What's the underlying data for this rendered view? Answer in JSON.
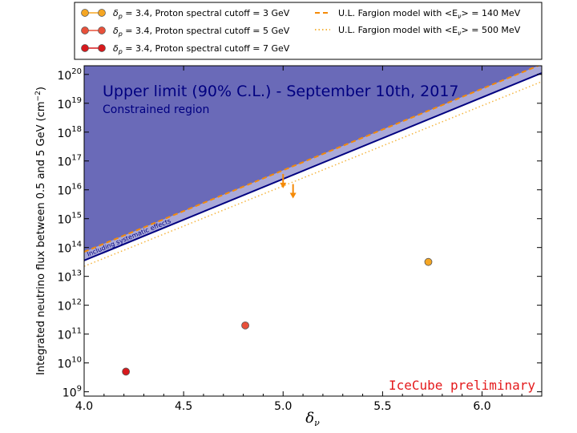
{
  "chart_data": {
    "type": "scatter",
    "xlabel": "δ_ν",
    "ylabel": "Integrated neutrino flux between 0.5 and 5 GeV (cm^-2)",
    "xlim": [
      4.0,
      6.3
    ],
    "ylim_log10": [
      8.85,
      20.3
    ],
    "y_scale": "log",
    "grid": false,
    "legend_position": "top, above plot",
    "x_ticks": [
      {
        "value": 4.0,
        "label": "4.0"
      },
      {
        "value": 4.5,
        "label": "4.5"
      },
      {
        "value": 5.0,
        "label": "5.0"
      },
      {
        "value": 5.5,
        "label": "5.5"
      },
      {
        "value": 6.0,
        "label": "6.0"
      }
    ],
    "y_ticks": [
      {
        "exp": 9,
        "base": "10",
        "sup": "9"
      },
      {
        "exp": 10,
        "base": "10",
        "sup": "10"
      },
      {
        "exp": 11,
        "base": "10",
        "sup": "11"
      },
      {
        "exp": 12,
        "base": "10",
        "sup": "12"
      },
      {
        "exp": 13,
        "base": "10",
        "sup": "13"
      },
      {
        "exp": 14,
        "base": "10",
        "sup": "14"
      },
      {
        "exp": 15,
        "base": "10",
        "sup": "15"
      },
      {
        "exp": 16,
        "base": "10",
        "sup": "16"
      },
      {
        "exp": 17,
        "base": "10",
        "sup": "17"
      },
      {
        "exp": 18,
        "base": "10",
        "sup": "18"
      },
      {
        "exp": 19,
        "base": "10",
        "sup": "19"
      },
      {
        "exp": 20,
        "base": "10",
        "sup": "20"
      }
    ],
    "points": [
      {
        "name": "δp = 3.4, Proton spectral cutoff = 3 GeV",
        "x": 5.73,
        "log10_y": 13.5,
        "color": "#f5a623"
      },
      {
        "name": "δp = 3.4, Proton spectral cutoff = 5 GeV",
        "x": 4.81,
        "log10_y": 11.3,
        "color": "#e8503a"
      },
      {
        "name": "δp = 3.4, Proton spectral cutoff = 7 GeV",
        "x": 4.21,
        "log10_y": 9.7,
        "color": "#d7191c"
      }
    ],
    "upper_limit_line": {
      "x": [
        4.0,
        6.3
      ],
      "log10_y": [
        13.55,
        20.05
      ],
      "color": "#000080"
    },
    "fargion_lines": [
      {
        "name": "U.L. Fargion model with <Eν> = 140 MeV",
        "style": "dashed",
        "color": "#f58a07",
        "x": [
          4.0,
          6.3
        ],
        "log10_y": [
          13.85,
          20.35
        ]
      },
      {
        "name": "U.L. Fargion model with <Eν> = 500 MeV",
        "style": "dotted",
        "color": "#f5b642",
        "x": [
          4.0,
          6.3
        ],
        "log10_y": [
          13.35,
          19.75
        ]
      }
    ],
    "arrows": [
      {
        "x": 5.0,
        "log10_y": 16.55
      },
      {
        "x": 5.05,
        "log10_y": 16.2
      }
    ],
    "constrained_region_color": "#6a6ab8",
    "systematic_band_color": "#a9a9d9",
    "annotations": {
      "title": "Upper limit (90% C.L.) - September 10th, 2017",
      "region": "Constrained region",
      "band": "Including systematic effects",
      "watermark": "IceCube preliminary"
    },
    "legend": [
      {
        "marker": "circle-line",
        "color": "#f5a623",
        "sym": "δ",
        "sub": "p",
        "rest": " = 3.4, Proton spectral cutoff = 3 GeV"
      },
      {
        "marker": "circle-line",
        "color": "#e8503a",
        "sym": "δ",
        "sub": "p",
        "rest": " = 3.4, Proton spectral cutoff = 5 GeV"
      },
      {
        "marker": "circle-line",
        "color": "#d7191c",
        "sym": "δ",
        "sub": "p",
        "rest": " = 3.4, Proton spectral cutoff = 7 GeV"
      },
      {
        "marker": "dashed",
        "color": "#f58a07",
        "pre": "U.L. Fargion model with <E",
        "sub": "ν",
        "post": "> =  140 MeV"
      },
      {
        "marker": "dotted",
        "color": "#f5b642",
        "pre": "U.L. Fargion model with <E",
        "sub": "ν",
        "post": "> =  500 MeV"
      }
    ]
  }
}
